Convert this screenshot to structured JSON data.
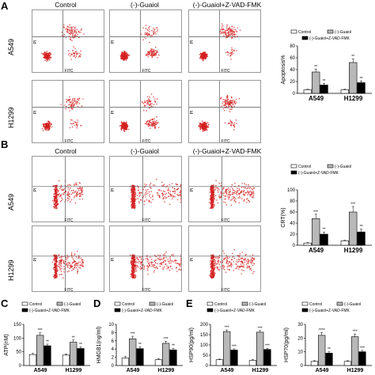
{
  "panels": {
    "A": "A",
    "B": "B",
    "C": "C",
    "D": "D",
    "E": "E"
  },
  "conditions": [
    "Control",
    "(-)-Guaiol",
    "(-)-Guaiol+Z-VAD-FMK"
  ],
  "rows": [
    "A549",
    "H1299"
  ],
  "flow_axes": {
    "x": "FITC",
    "y": "PI",
    "ticks_B": [
      "1000",
      "800",
      "600",
      "400",
      "200",
      "0"
    ]
  },
  "legend": {
    "control": "Control",
    "guaiol": "(-)-Guaiol",
    "combo": "(-)-Guaiol+Z-VAD-FMK"
  },
  "colors": {
    "control": "#ffffff",
    "guaiol": "#b8b8b8",
    "combo": "#000000",
    "dots": "#d42020"
  },
  "chart_data": [
    {
      "id": "A",
      "type": "bar",
      "ylabel": "Apoptosis%",
      "ylim": [
        0,
        80
      ],
      "yticks": [
        "0",
        "20",
        "40",
        "60",
        "80"
      ],
      "categories": [
        "A549",
        "H1299"
      ],
      "series": [
        {
          "name": "Control",
          "values": [
            6,
            6
          ]
        },
        {
          "name": "(-)-Guaiol",
          "values": [
            36,
            52
          ]
        },
        {
          "name": "(-)-Guaiol+Z-VAD-FMK",
          "values": [
            14,
            18
          ]
        }
      ],
      "errors": [
        [
          1,
          1
        ],
        [
          5,
          6
        ],
        [
          3,
          3
        ]
      ],
      "sig": [
        [
          "",
          ""
        ],
        [
          "**",
          "**"
        ],
        [
          "**",
          "**"
        ]
      ]
    },
    {
      "id": "B",
      "type": "bar",
      "ylabel": "CRT(%)",
      "ylim": [
        0,
        100
      ],
      "yticks": [
        "0",
        "20",
        "40",
        "60",
        "80",
        "100"
      ],
      "categories": [
        "A549",
        "H1299"
      ],
      "series": [
        {
          "name": "Control",
          "values": [
            4,
            8
          ]
        },
        {
          "name": "(-)-Guaiol",
          "values": [
            48,
            60
          ]
        },
        {
          "name": "(-)-Guaiol+Z-VAD-FMK",
          "values": [
            20,
            24
          ]
        }
      ],
      "errors": [
        [
          1,
          1
        ],
        [
          8,
          10
        ],
        [
          4,
          5
        ]
      ],
      "sig": [
        [
          "",
          ""
        ],
        [
          "***",
          "***"
        ],
        [
          "**",
          "**"
        ]
      ]
    },
    {
      "id": "C",
      "type": "bar",
      "ylabel": "ATP(nM)",
      "ylim": [
        0,
        150
      ],
      "yticks": [
        "0",
        "50",
        "100",
        "150"
      ],
      "categories": [
        "A549",
        "H1299"
      ],
      "series": [
        {
          "name": "Control",
          "values": [
            40,
            38
          ]
        },
        {
          "name": "(-)-Guaiol",
          "values": [
            110,
            85
          ]
        },
        {
          "name": "(-)-Guaiol+Z-VAD-FMK",
          "values": [
            72,
            62
          ]
        }
      ],
      "errors": [
        [
          4,
          4
        ],
        [
          9,
          8
        ],
        [
          6,
          6
        ]
      ],
      "sig": [
        [
          "",
          ""
        ],
        [
          "***",
          "**"
        ],
        [
          "**",
          "**"
        ]
      ]
    },
    {
      "id": "D",
      "type": "bar",
      "ylabel": "HMGB1(ng/ml)",
      "ylim": [
        0,
        10
      ],
      "yticks": [
        "0",
        "2",
        "4",
        "6",
        "8",
        "10"
      ],
      "categories": [
        "A549",
        "H1299"
      ],
      "series": [
        {
          "name": "Control",
          "values": [
            1.8,
            1.4
          ]
        },
        {
          "name": "(-)-Guaiol",
          "values": [
            6.5,
            5.4
          ]
        },
        {
          "name": "(-)-Guaiol+Z-VAD-FMK",
          "values": [
            4.1,
            3.8
          ]
        }
      ],
      "errors": [
        [
          0.4,
          0.3
        ],
        [
          0.6,
          0.5
        ],
        [
          0.4,
          0.4
        ]
      ],
      "sig": [
        [
          "",
          ""
        ],
        [
          "***",
          "***"
        ],
        [
          "**",
          "**"
        ]
      ]
    },
    {
      "id": "E1",
      "type": "bar",
      "ylabel": "HSP90(pg/ml)",
      "ylim": [
        0,
        200
      ],
      "yticks": [
        "0",
        "50",
        "100",
        "150",
        "200"
      ],
      "categories": [
        "A549",
        "H1299"
      ],
      "series": [
        {
          "name": "Control",
          "values": [
            28,
            25
          ]
        },
        {
          "name": "(-)-Guaiol",
          "values": [
            165,
            162
          ]
        },
        {
          "name": "(-)-Guaiol+Z-VAD-FMK",
          "values": [
            75,
            78
          ]
        }
      ],
      "errors": [
        [
          3,
          3
        ],
        [
          8,
          8
        ],
        [
          6,
          6
        ]
      ],
      "sig": [
        [
          "",
          ""
        ],
        [
          "***",
          "***"
        ],
        [
          "***",
          "***"
        ]
      ]
    },
    {
      "id": "E2",
      "type": "bar",
      "ylabel": "HSP70(pg/ml)",
      "ylim": [
        0,
        30
      ],
      "yticks": [
        "0",
        "10",
        "20",
        "30"
      ],
      "categories": [
        "A549",
        "H1299"
      ],
      "series": [
        {
          "name": "Control",
          "values": [
            3,
            3
          ]
        },
        {
          "name": "(-)-Guaiol",
          "values": [
            22,
            21
          ]
        },
        {
          "name": "(-)-Guaiol+Z-VAD-FMK",
          "values": [
            9,
            10
          ]
        }
      ],
      "errors": [
        [
          0.5,
          0.5
        ],
        [
          2,
          2
        ],
        [
          1,
          1
        ]
      ],
      "sig": [
        [
          "",
          ""
        ],
        [
          "****",
          "***"
        ],
        [
          "**",
          "***"
        ]
      ]
    }
  ]
}
